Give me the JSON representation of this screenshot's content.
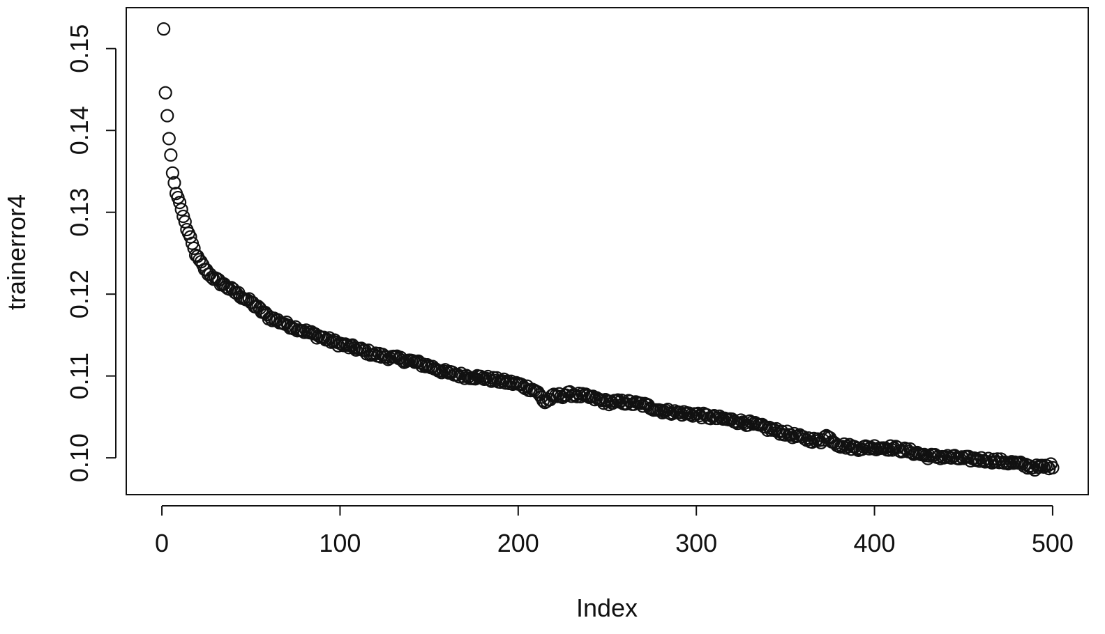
{
  "chart_data": {
    "type": "scatter",
    "title": "",
    "xlabel": "Index",
    "ylabel": "trainerror4",
    "xlim": [
      -20,
      520
    ],
    "ylim": [
      0.0955,
      0.155
    ],
    "x_ticks": [
      0,
      100,
      200,
      300,
      400,
      500
    ],
    "y_ticks": [
      0.1,
      0.11,
      0.12,
      0.13,
      0.14,
      0.15
    ],
    "x_tick_labels": [
      "0",
      "100",
      "200",
      "300",
      "400",
      "500"
    ],
    "y_tick_labels": [
      "0.10",
      "0.11",
      "0.12",
      "0.13",
      "0.14",
      "0.15"
    ],
    "grid": false,
    "marker": "open-circle",
    "color": "#111111",
    "n_points": 500,
    "x_step": 1,
    "x_start": 1,
    "curve_description": "values at index 1..500 (sampled anchors; points between follow the same smooth decline)",
    "anchors": {
      "x": [
        1,
        2,
        3,
        4,
        5,
        6,
        7,
        8,
        9,
        10,
        12,
        14,
        16,
        18,
        20,
        25,
        30,
        40,
        50,
        60,
        70,
        80,
        90,
        100,
        110,
        120,
        130,
        140,
        150,
        160,
        170,
        180,
        190,
        200,
        210,
        215,
        220,
        230,
        240,
        250,
        260,
        270,
        280,
        290,
        300,
        310,
        320,
        330,
        340,
        350,
        360,
        370,
        372,
        380,
        390,
        400,
        410,
        420,
        430,
        440,
        450,
        460,
        470,
        480,
        490,
        500
      ],
      "y": [
        0.1524,
        0.1446,
        0.1418,
        0.139,
        0.137,
        0.1348,
        0.1336,
        0.1323,
        0.1318,
        0.1312,
        0.1295,
        0.128,
        0.1267,
        0.1255,
        0.1244,
        0.1228,
        0.1218,
        0.1204,
        0.119,
        0.1172,
        0.1163,
        0.1155,
        0.1147,
        0.1139,
        0.1133,
        0.1126,
        0.1122,
        0.1118,
        0.1112,
        0.1104,
        0.11,
        0.1098,
        0.1094,
        0.109,
        0.1082,
        0.1068,
        0.1075,
        0.1078,
        0.1074,
        0.1068,
        0.1068,
        0.1065,
        0.1058,
        0.1055,
        0.1053,
        0.1049,
        0.1046,
        0.1042,
        0.1036,
        0.103,
        0.1024,
        0.102,
        0.1028,
        0.1016,
        0.1012,
        0.1013,
        0.1012,
        0.1008,
        0.1002,
        0.1001,
        0.0999,
        0.0998,
        0.0996,
        0.0993,
        0.0988,
        0.099
      ]
    }
  }
}
